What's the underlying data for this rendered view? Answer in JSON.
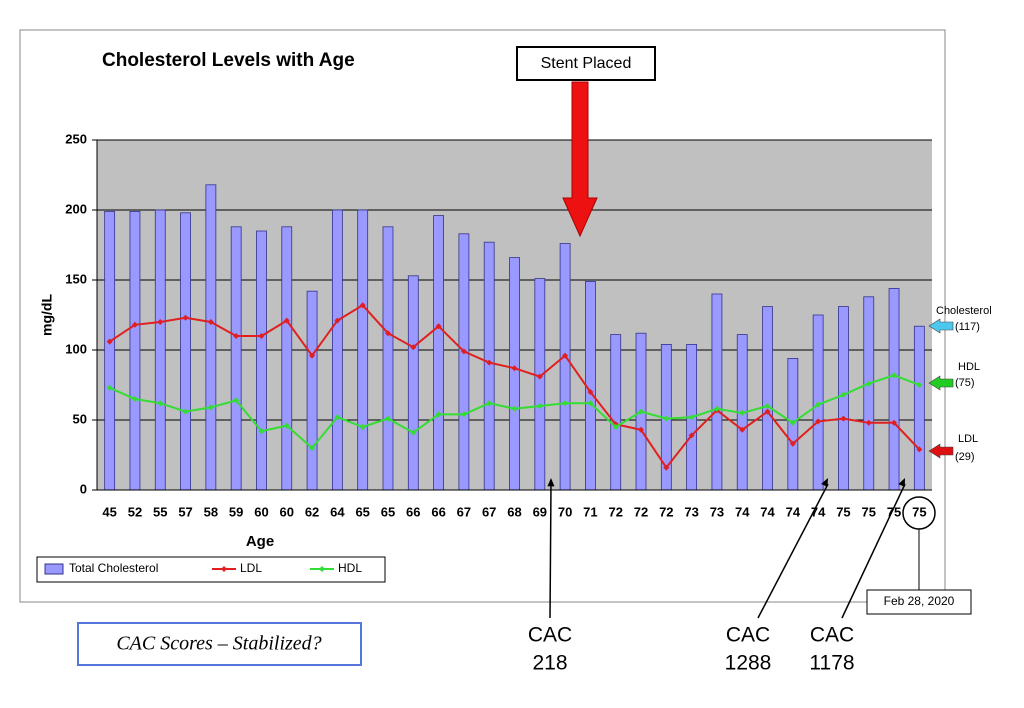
{
  "chart_data": {
    "type": "bar",
    "title": "Cholesterol Levels with Age",
    "x_label": "Age",
    "y_label": "mg/dL",
    "categories": [
      "45",
      "52",
      "55",
      "57",
      "58",
      "59",
      "60",
      "60",
      "62",
      "64",
      "65",
      "65",
      "66",
      "66",
      "67",
      "67",
      "68",
      "69",
      "70",
      "71",
      "72",
      "72",
      "72",
      "73",
      "73",
      "74",
      "74",
      "74",
      "74",
      "75",
      "75",
      "75",
      "75"
    ],
    "series": [
      {
        "name": "Total Cholesterol",
        "type": "bar",
        "color": "#9999ff",
        "values": [
          199,
          199,
          200,
          198,
          218,
          188,
          185,
          188,
          142,
          200,
          200,
          188,
          153,
          196,
          183,
          177,
          166,
          151,
          176,
          149,
          111,
          112,
          104,
          104,
          140,
          111,
          131,
          94,
          125,
          131,
          138,
          144,
          117
        ]
      },
      {
        "name": "LDL",
        "type": "line",
        "color": "#e02020",
        "values": [
          106,
          118,
          120,
          123,
          120,
          110,
          110,
          121,
          96,
          121,
          132,
          112,
          102,
          117,
          99,
          91,
          87,
          81,
          96,
          70,
          47,
          43,
          16,
          39,
          57,
          43,
          56,
          33,
          49,
          51,
          48,
          48,
          29
        ]
      },
      {
        "name": "HDL",
        "type": "line",
        "color": "#33dd33",
        "values": [
          73,
          65,
          62,
          56,
          59,
          64,
          42,
          46,
          30,
          52,
          45,
          51,
          41,
          54,
          54,
          62,
          58,
          60,
          62,
          62,
          45,
          56,
          51,
          52,
          58,
          55,
          60,
          48,
          61,
          68,
          76,
          82,
          75
        ]
      }
    ],
    "ylim": [
      0,
      250
    ],
    "yticks": [
      0,
      50,
      100,
      150,
      200,
      250
    ],
    "grid": true,
    "legend": "bottom-left",
    "end_labels": [
      {
        "name": "Cholesterol",
        "label": "(117)",
        "color": "#4cc8f0"
      },
      {
        "name": "HDL",
        "label": "(75)",
        "color": "#22cc22"
      },
      {
        "name": "LDL",
        "label": "(29)",
        "color": "#dd1111"
      }
    ],
    "annotations": {
      "stent": "Stent Placed",
      "date": "Feb 28, 2020",
      "caption": "CAC Scores – Stabilized?",
      "cac": [
        {
          "title": "CAC",
          "score": "218"
        },
        {
          "title": "CAC",
          "score": "1288"
        },
        {
          "title": "CAC",
          "score": "1178"
        }
      ]
    }
  }
}
